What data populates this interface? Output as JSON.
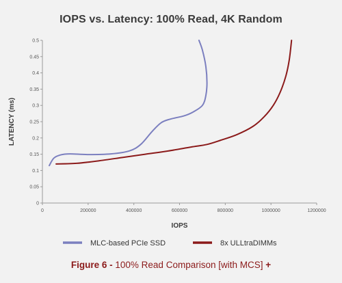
{
  "chart_data": {
    "type": "line",
    "title": "IOPS vs. Latency: 100% Read, 4K Random",
    "xlabel": "IOPS",
    "ylabel": "LATENCY (ms)",
    "xlim": [
      0,
      1200000
    ],
    "ylim": [
      0,
      0.5
    ],
    "x_ticks": [
      "0",
      "200000",
      "400000",
      "600000",
      "800000",
      "1000000",
      "1200000"
    ],
    "y_ticks": [
      "0",
      "0.05",
      "0.1",
      "0.15",
      "0.2",
      "0.25",
      "0.3",
      "0.35",
      "0.4",
      "0.45",
      "0.5"
    ],
    "grid": false,
    "legend_position": "bottom",
    "series": [
      {
        "name": "MLC-based PCIe SSD",
        "color": "#7b7fbf",
        "points": [
          [
            30000,
            0.115
          ],
          [
            50000,
            0.138
          ],
          [
            80000,
            0.148
          ],
          [
            120000,
            0.151
          ],
          [
            200000,
            0.149
          ],
          [
            300000,
            0.151
          ],
          [
            380000,
            0.16
          ],
          [
            430000,
            0.18
          ],
          [
            480000,
            0.22
          ],
          [
            520000,
            0.247
          ],
          [
            560000,
            0.258
          ],
          [
            620000,
            0.268
          ],
          [
            660000,
            0.28
          ],
          [
            700000,
            0.3
          ],
          [
            715000,
            0.33
          ],
          [
            720000,
            0.37
          ],
          [
            715000,
            0.42
          ],
          [
            700000,
            0.47
          ],
          [
            685000,
            0.5
          ]
        ]
      },
      {
        "name": "8x ULLtraDIMMs",
        "color": "#8b1a1a",
        "points": [
          [
            60000,
            0.12
          ],
          [
            150000,
            0.122
          ],
          [
            250000,
            0.13
          ],
          [
            350000,
            0.14
          ],
          [
            450000,
            0.15
          ],
          [
            550000,
            0.16
          ],
          [
            650000,
            0.172
          ],
          [
            720000,
            0.18
          ],
          [
            780000,
            0.193
          ],
          [
            850000,
            0.21
          ],
          [
            920000,
            0.235
          ],
          [
            970000,
            0.265
          ],
          [
            1010000,
            0.3
          ],
          [
            1040000,
            0.34
          ],
          [
            1065000,
            0.39
          ],
          [
            1080000,
            0.44
          ],
          [
            1090000,
            0.5
          ]
        ]
      }
    ]
  },
  "caption": {
    "prefix": "Figure 6 -",
    "text": " 100% Read Comparison [with MCS] ",
    "plus": "+"
  }
}
